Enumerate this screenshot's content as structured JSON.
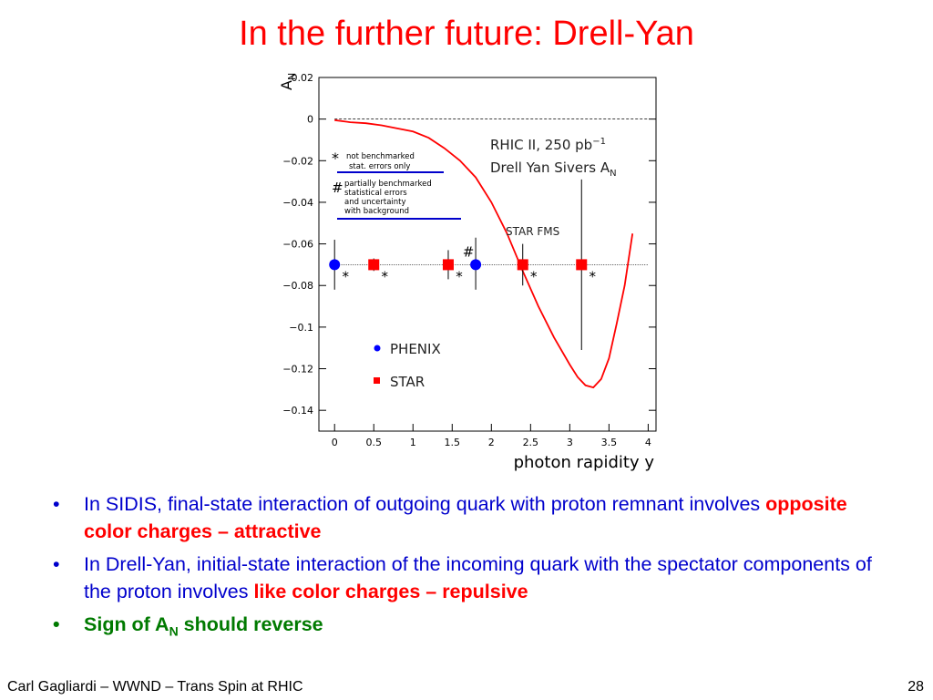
{
  "slide": {
    "title": "In the further future:  Drell-Yan",
    "footer_left": "Carl Gagliardi – WWND – Trans Spin at RHIC",
    "page_number": "28"
  },
  "bullets": [
    {
      "text": "In SIDIS, final-state interaction of outgoing quark with proton remnant involves ",
      "emphasis": "opposite color charges – attractive"
    },
    {
      "text": "In Drell-Yan, initial-state interaction of the incoming quark with the spectator components of the proton involves ",
      "emphasis": "like color charges – repulsive"
    },
    {
      "text_prefix": "Sign of A",
      "subscript": "N",
      "text_suffix": " should reverse"
    }
  ],
  "bullet_symbol": "•",
  "colors": {
    "title": "#ff0000",
    "bullet_text": "#0000cc",
    "emphasis": "#ff0000",
    "conclusion": "#007a00",
    "phenix": "#0000ff",
    "star": "#ff0000",
    "curve": "#ff0000"
  },
  "chart_data": {
    "type": "scatter",
    "ylabel_main": "A",
    "ylabel_sub": "N",
    "xlabel": "photon rapidity y",
    "xlim": [
      -0.2,
      4.1
    ],
    "ylim": [
      -0.15,
      0.02
    ],
    "x_ticks": [
      0,
      0.5,
      1,
      1.5,
      2,
      2.5,
      3,
      3.5,
      4
    ],
    "x_tick_labels": [
      "0",
      "0.5",
      "1",
      "1.5",
      "2",
      "2.5",
      "3",
      "3.5",
      "4"
    ],
    "y_ticks": [
      0.02,
      0,
      -0.02,
      -0.04,
      -0.06,
      -0.08,
      -0.1,
      -0.12,
      -0.14
    ],
    "y_tick_labels": [
      "0.02",
      "0",
      "−0.02",
      "−0.04",
      "−0.06",
      "−0.08",
      "−0.1",
      "−0.12",
      "−0.14"
    ],
    "annotation_line1_prefix": "RHIC II, 250 pb",
    "annotation_line1_sup": "−1",
    "annotation_line2_prefix": "Drell Yan Sivers A",
    "annotation_line2_sub": "N",
    "star_fms_label": "STAR FMS",
    "key": [
      {
        "symbol": "*",
        "lines": [
          "not benchmarked",
          "stat. errors only"
        ]
      },
      {
        "symbol": "#",
        "lines": [
          "partially benchmarked",
          "statistical errors",
          "and uncertainty",
          "with background"
        ]
      }
    ],
    "reference_lines": [
      {
        "y": 0,
        "style": "dashed"
      },
      {
        "y": -0.07,
        "style": "dotted"
      }
    ],
    "series": [
      {
        "name": "PHENIX",
        "marker": "circle",
        "points": [
          {
            "x": 0.0,
            "y": -0.07,
            "err_lo": -0.082,
            "err_hi": -0.058,
            "flag": "*"
          },
          {
            "x": 1.8,
            "y": -0.07,
            "err_lo": -0.082,
            "err_hi": -0.057,
            "flag": "#"
          }
        ]
      },
      {
        "name": "STAR",
        "marker": "square",
        "points": [
          {
            "x": 0.5,
            "y": -0.07,
            "err_lo": -0.073,
            "err_hi": -0.067,
            "flag": "*"
          },
          {
            "x": 1.45,
            "y": -0.07,
            "err_lo": -0.077,
            "err_hi": -0.063,
            "flag": "*"
          },
          {
            "x": 2.4,
            "y": -0.07,
            "err_lo": -0.08,
            "err_hi": -0.06,
            "flag": "*"
          },
          {
            "x": 3.15,
            "y": -0.07,
            "err_lo": -0.111,
            "err_hi": -0.029,
            "flag": "*"
          }
        ]
      }
    ],
    "curve": {
      "name": "Drell Yan Sivers prediction",
      "x": [
        0.0,
        0.2,
        0.4,
        0.6,
        0.8,
        1.0,
        1.2,
        1.4,
        1.6,
        1.8,
        2.0,
        2.2,
        2.4,
        2.6,
        2.8,
        3.0,
        3.1,
        3.2,
        3.3,
        3.4,
        3.5,
        3.6,
        3.7,
        3.8
      ],
      "y": [
        -0.0005,
        -0.0015,
        -0.002,
        -0.003,
        -0.0045,
        -0.006,
        -0.009,
        -0.014,
        -0.02,
        -0.028,
        -0.04,
        -0.055,
        -0.073,
        -0.09,
        -0.105,
        -0.118,
        -0.124,
        -0.128,
        -0.129,
        -0.125,
        -0.115,
        -0.098,
        -0.08,
        -0.055
      ]
    }
  }
}
